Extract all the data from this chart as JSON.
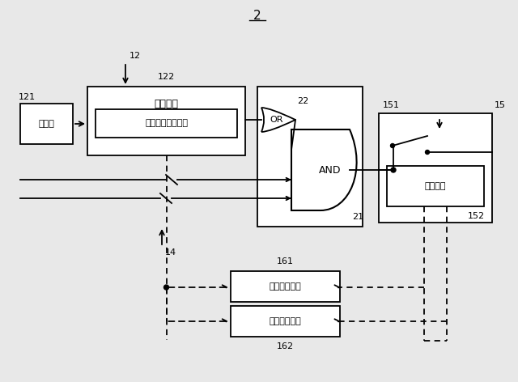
{
  "bg_color": "#e8e8e8",
  "line_color": "#000000",
  "title": "2",
  "label_12": "12",
  "label_121": "121",
  "label_122": "122",
  "label_22": "22",
  "label_21": "21",
  "label_14": "14",
  "label_15": "15",
  "label_151": "151",
  "label_152": "152",
  "label_161": "161",
  "label_162": "162",
  "box_camera": "撃像部",
  "box_auth_outer": "認証回路",
  "box_auth_inner": "認証アルゴリズム",
  "box_compare": "比較回路",
  "box_upper": "上限値設定部",
  "box_lower": "下限値設定部",
  "gate_or": "OR",
  "gate_and": "AND"
}
